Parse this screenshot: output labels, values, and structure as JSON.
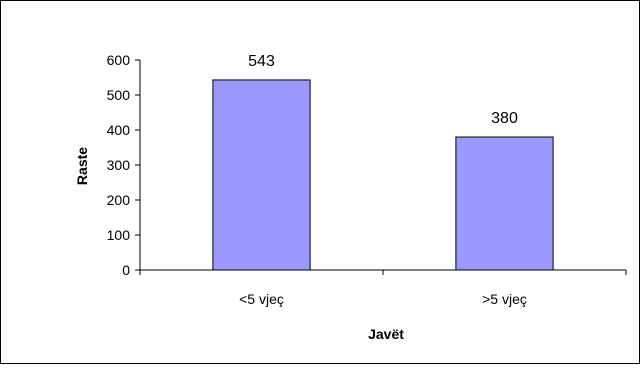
{
  "chart_data": {
    "type": "bar",
    "categories": [
      "<5 vjeç",
      ">5 vjeç"
    ],
    "values": [
      543,
      380
    ],
    "data_labels": [
      "543",
      "380"
    ],
    "title": "",
    "xlabel": "Javët",
    "ylabel": "Raste",
    "ylim": [
      0,
      600
    ],
    "yticks": [
      0,
      100,
      200,
      300,
      400,
      500,
      600
    ],
    "ytick_labels": [
      "0",
      "100",
      "200",
      "300",
      "400",
      "500",
      "600"
    ],
    "grid": false,
    "legend": "none",
    "bar_color": "#9999ff",
    "bar_edge_color": "#000000"
  }
}
